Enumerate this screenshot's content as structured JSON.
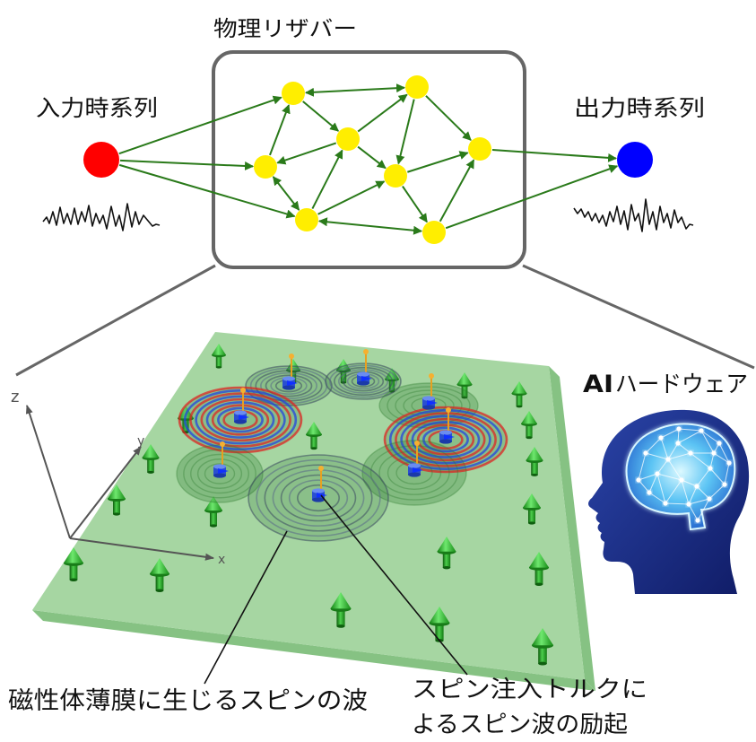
{
  "diagram": {
    "title": "物理リザバー",
    "input_label": "入力時系列",
    "output_label": "出力時系列",
    "ai_label_bold": "AI",
    "ai_label_rest": "ハードウェア",
    "axes": {
      "x": "x",
      "y": "y",
      "z": "z"
    },
    "callout_film": "磁性体薄膜に生じるスピンの波",
    "callout_excitation": [
      "スピン注入トルクに",
      "よるスピン波の励起"
    ]
  },
  "colors": {
    "input_node": "#ff0000",
    "output_node": "#0000ff",
    "reservoir_node": "#ffee00",
    "reservoir_edge": "#2a7a1a",
    "reservoir_frame": "#666666",
    "film": "#9ed39a",
    "film_side": "#86c283",
    "spin_red": "#e02020",
    "spin_blue": "#2040e0",
    "injector": "#2a4fd0",
    "pin": "#e8a020"
  }
}
